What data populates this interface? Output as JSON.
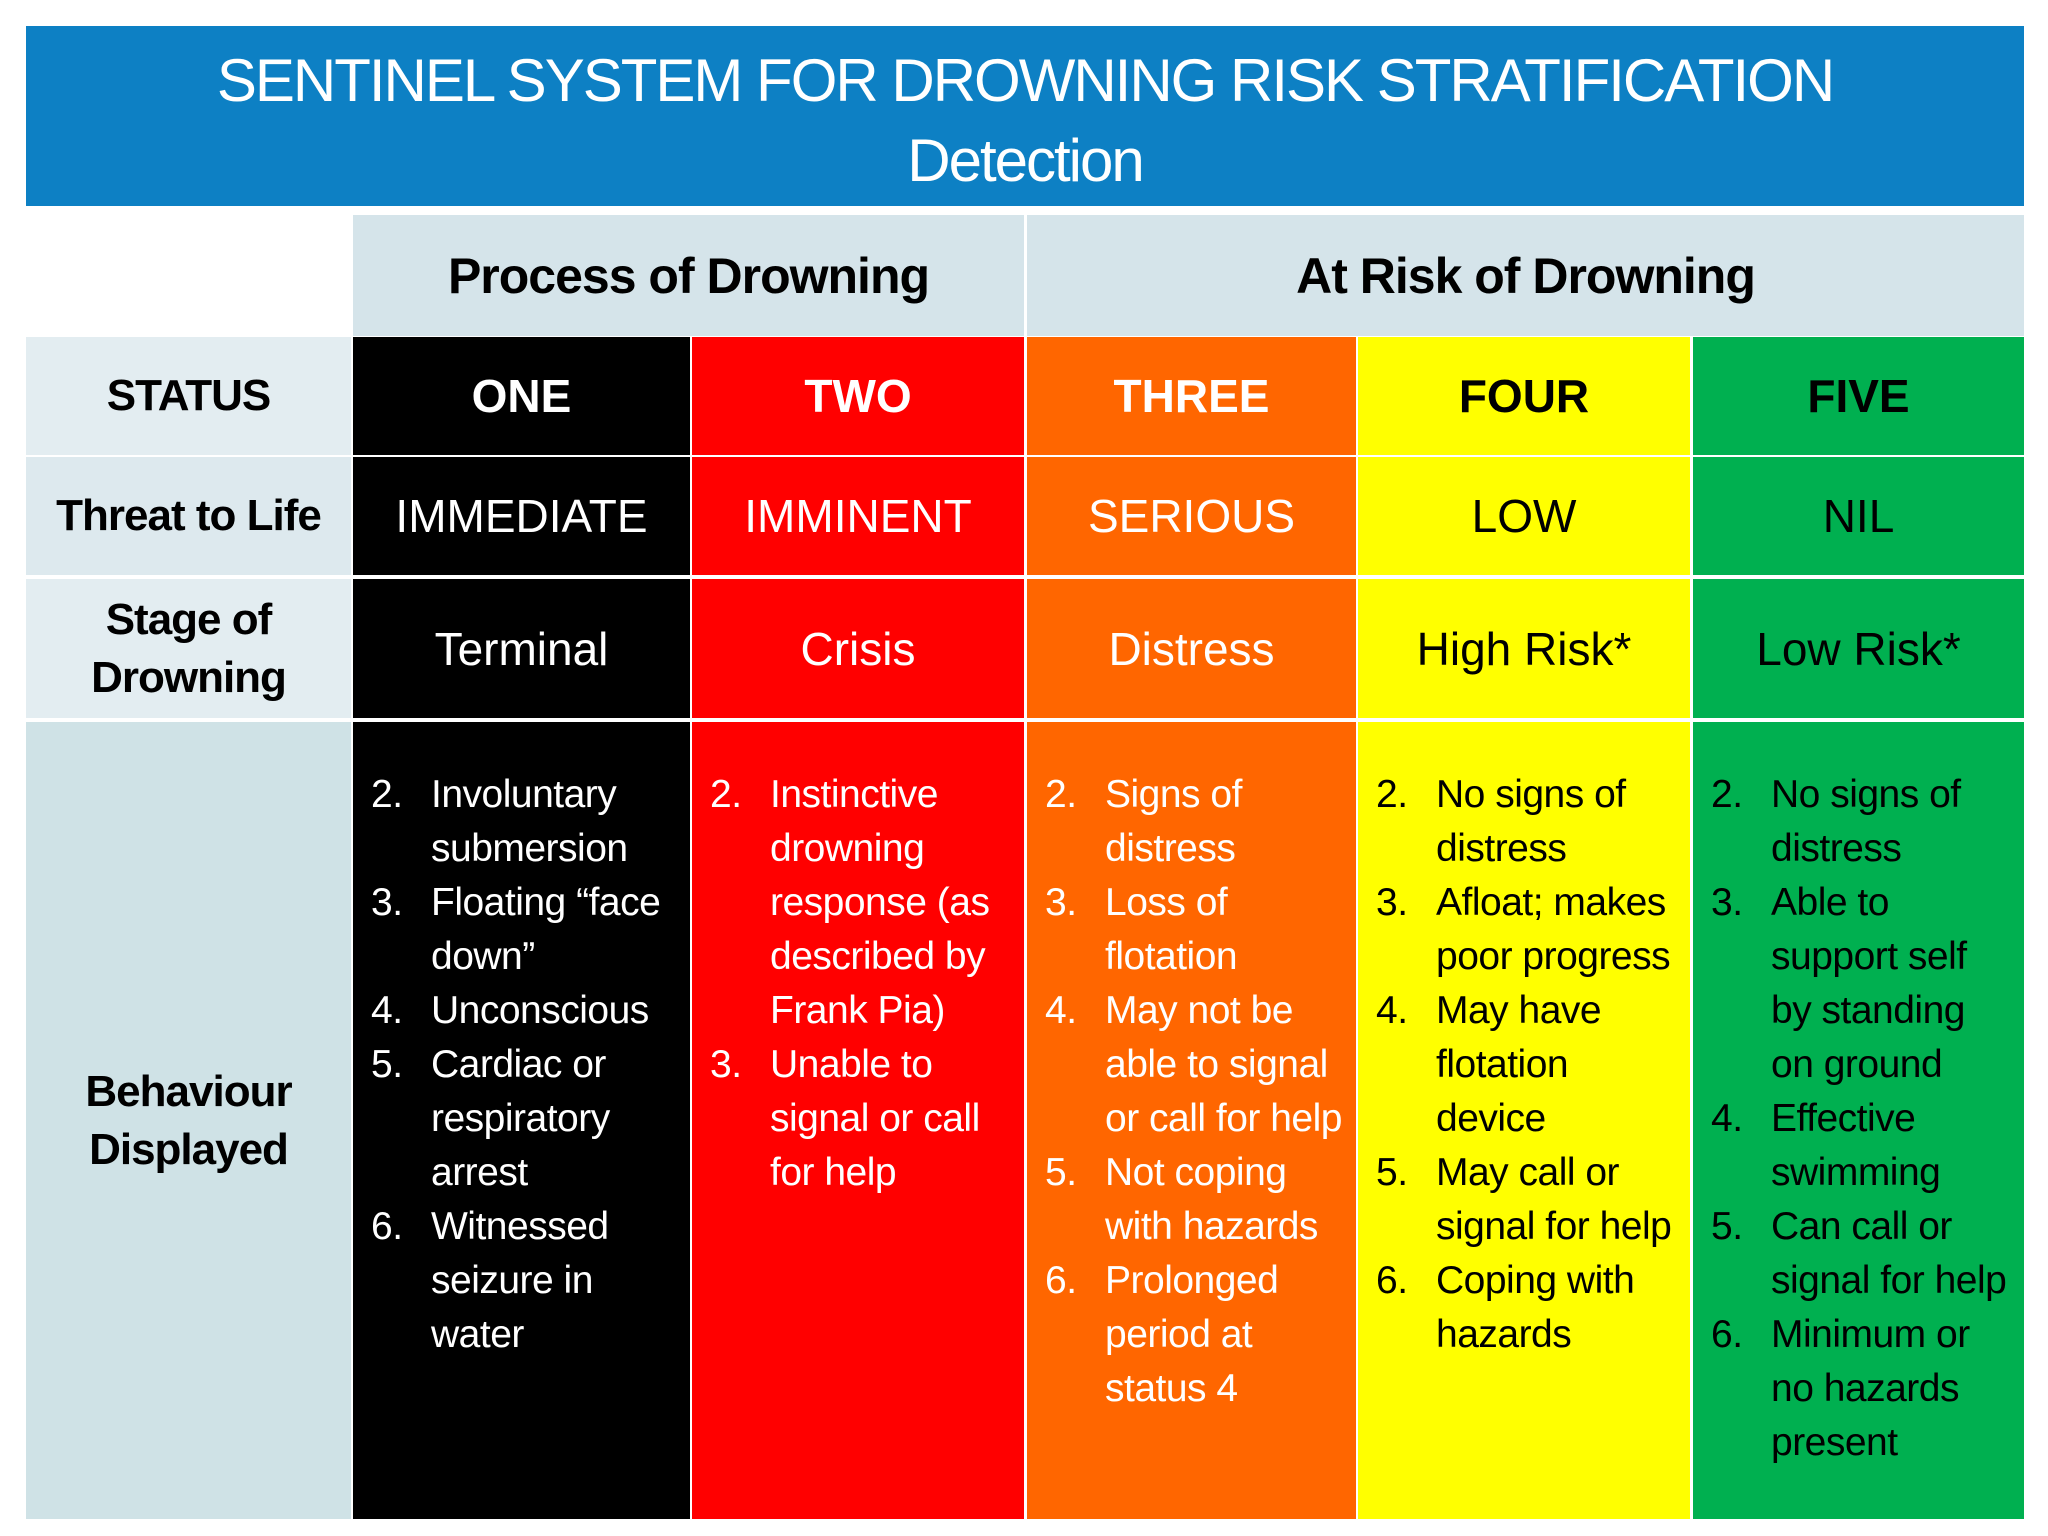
{
  "header": {
    "title": "SENTINEL SYSTEM FOR DROWNING RISK STRATIFICATION",
    "subtitle": "Detection"
  },
  "groups": [
    {
      "label": "Process of Drowning"
    },
    {
      "label": "At Risk of Drowning"
    }
  ],
  "row_labels": [
    "STATUS",
    "Threat to Life",
    "Stage of Drowning",
    "Behaviour Displayed"
  ],
  "columns": [
    {
      "status": "ONE",
      "threat": "IMMEDIATE",
      "stage": "Terminal",
      "color": "#000000",
      "text_color": "#ffffff",
      "behaviours": [
        {
          "number": "2.",
          "text": "Involuntary submersion"
        },
        {
          "number": "3.",
          "text": "Floating “face down”"
        },
        {
          "number": "4.",
          "text": "Unconscious"
        },
        {
          "number": "5.",
          "text": "Cardiac or respiratory arrest"
        },
        {
          "number": "6.",
          "text": "Witnessed seizure in water"
        }
      ]
    },
    {
      "status": "TWO",
      "threat": "IMMINENT",
      "stage": "Crisis",
      "color": "#ff0000",
      "text_color": "#ffffff",
      "behaviours": [
        {
          "number": "2.",
          "text": "Instinctive drowning response (as described by Frank Pia)"
        },
        {
          "number": "3.",
          "text": "Unable to signal or call for help"
        }
      ]
    },
    {
      "status": "THREE",
      "threat": "SERIOUS",
      "stage": "Distress",
      "color": "#ff6600",
      "text_color": "#ffffff",
      "behaviours": [
        {
          "number": "2.",
          "text": "Signs of distress"
        },
        {
          "number": "3.",
          "text": "Loss of flotation"
        },
        {
          "number": "4.",
          "text": "May not be able to signal or call for help"
        },
        {
          "number": "5.",
          "text": "Not coping with hazards"
        },
        {
          "number": "6.",
          "text": "Prolonged period at status 4"
        }
      ]
    },
    {
      "status": "FOUR",
      "threat": "LOW",
      "stage": "High Risk*",
      "color": "#ffff00",
      "text_color": "#000000",
      "behaviours": [
        {
          "number": "2.",
          "text": "No signs of distress"
        },
        {
          "number": "3.",
          "text": "Afloat; makes poor progress"
        },
        {
          "number": "4.",
          "text": "May have flotation device"
        },
        {
          "number": "5.",
          "text": "May call or signal for help"
        },
        {
          "number": "6.",
          "text": "Coping with hazards"
        }
      ]
    },
    {
      "status": "FIVE",
      "threat": "NIL",
      "stage": "Low Risk*",
      "color": "#00b050",
      "text_color": "#000000",
      "behaviours": [
        {
          "number": "2.",
          "text": "No signs of distress"
        },
        {
          "number": "3.",
          "text": "Able to support self by standing on ground"
        },
        {
          "number": "4.",
          "text": "Effective swimming"
        },
        {
          "number": "5.",
          "text": "Can call or signal for help"
        },
        {
          "number": "6.",
          "text": "Minimum or no hazards present"
        }
      ]
    }
  ]
}
